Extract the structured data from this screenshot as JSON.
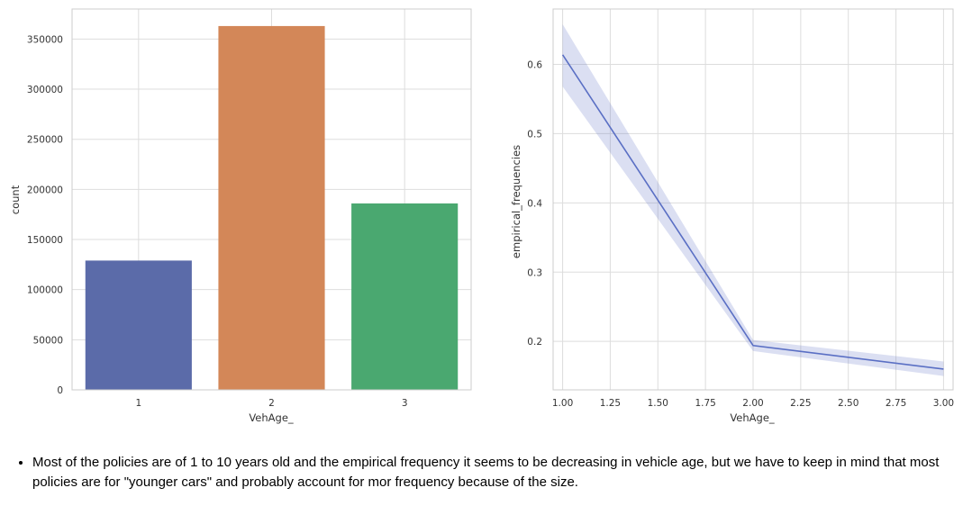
{
  "chart_data": [
    {
      "type": "bar",
      "categories": [
        "1",
        "2",
        "3"
      ],
      "values": [
        129000,
        363000,
        186000
      ],
      "colors": [
        "#5b6ba9",
        "#d38758",
        "#4aa870"
      ],
      "xlabel": "VehAge_",
      "ylabel": "count",
      "ylim": [
        0,
        380000
      ],
      "yticks": [
        0,
        50000,
        100000,
        150000,
        200000,
        250000,
        300000,
        350000
      ],
      "grid": true
    },
    {
      "type": "line",
      "x": [
        1.0,
        2.0,
        3.0
      ],
      "y": [
        0.614,
        0.194,
        0.16
      ],
      "ci_lower": [
        0.568,
        0.186,
        0.15
      ],
      "ci_upper": [
        0.658,
        0.202,
        0.171
      ],
      "color": "#5a6fc4",
      "xlabel": "VehAge_",
      "ylabel": "empirical_frequencies",
      "xlim": [
        0.95,
        3.05
      ],
      "ylim": [
        0.13,
        0.68
      ],
      "xticks": [
        "1.00",
        "1.25",
        "1.50",
        "1.75",
        "2.00",
        "2.25",
        "2.50",
        "2.75",
        "3.00"
      ],
      "yticks": [
        "0.2",
        "0.3",
        "0.4",
        "0.5",
        "0.6"
      ],
      "grid": true
    }
  ],
  "note": {
    "text": "Most of the policies are of 1 to 10 years old and the empirical frequency it seems to be decreasing in vehicle age, but we have to keep in mind that most policies are for \"younger cars\" and probably account for mor frequency because of the size."
  }
}
